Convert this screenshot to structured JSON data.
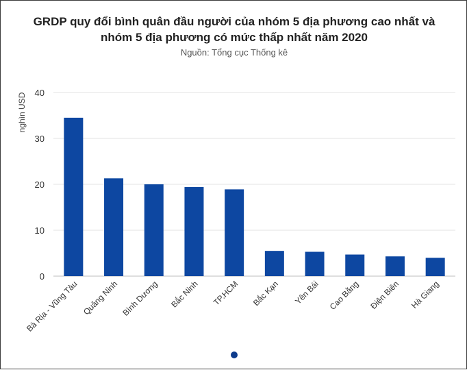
{
  "chart_data": {
    "type": "bar",
    "title_line1": "GRDP quy đổi bình quân đầu người của nhóm 5 địa phương cao nhất và",
    "title_line2": "nhóm 5 địa phương có mức thấp nhất năm 2020",
    "subtitle": "Nguồn: Tổng cục Thống kê",
    "ylabel": "nghìn USD",
    "xlabel": "",
    "ylim": [
      0,
      40
    ],
    "yticks": [
      0,
      10,
      20,
      30,
      40
    ],
    "grid": true,
    "categories": [
      "Bà Rịa - Vũng Tàu",
      "Quảng Ninh",
      "Bình Dương",
      "Bắc Ninh",
      "TP.HCM",
      "Bắc Kạn",
      "Yên Bái",
      "Cao Bằng",
      "Điện Biên",
      "Hà Giang"
    ],
    "values": [
      34.5,
      21.3,
      20.0,
      19.4,
      18.9,
      5.5,
      5.3,
      4.7,
      4.3,
      4.0
    ],
    "bar_color": "#0d47a1"
  },
  "pagination": {
    "active_dot_color": "#0d3b8c"
  }
}
